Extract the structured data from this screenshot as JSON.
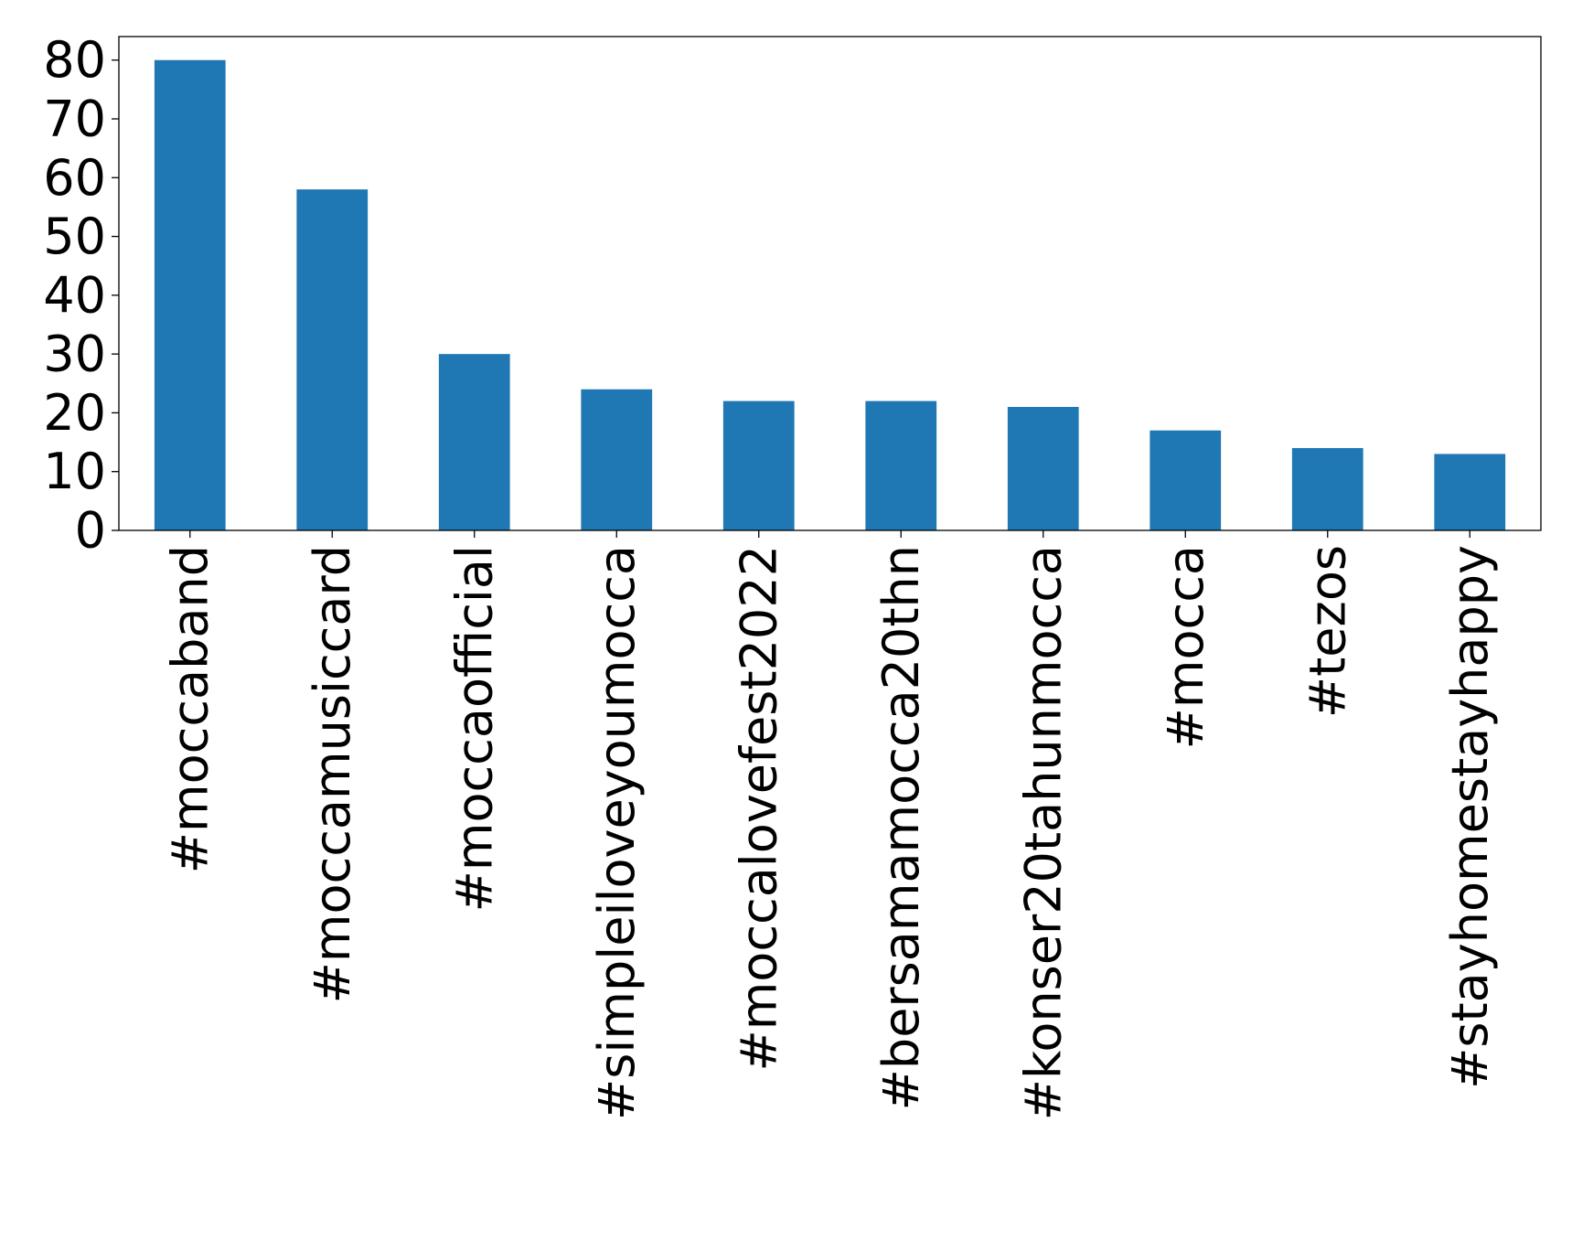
{
  "chart_data": {
    "type": "bar",
    "title": "",
    "xlabel": "",
    "ylabel": "",
    "categories": [
      "#moccaband",
      "#moccamusiccard",
      "#moccaofficial",
      "#simpleiloveyoumocca",
      "#moccalovefest2022",
      "#bersamamocca20thn",
      "#konser20tahunmocca",
      "#mocca",
      "#tezos",
      "#stayhomestayhappy"
    ],
    "values": [
      80,
      58,
      30,
      24,
      22,
      22,
      21,
      17,
      14,
      13
    ],
    "ylim": [
      0,
      84
    ],
    "yticks": [
      0,
      10,
      20,
      30,
      40,
      50,
      60,
      70,
      80
    ],
    "grid": false,
    "legend": "none",
    "bar_color": "#1f77b4"
  }
}
